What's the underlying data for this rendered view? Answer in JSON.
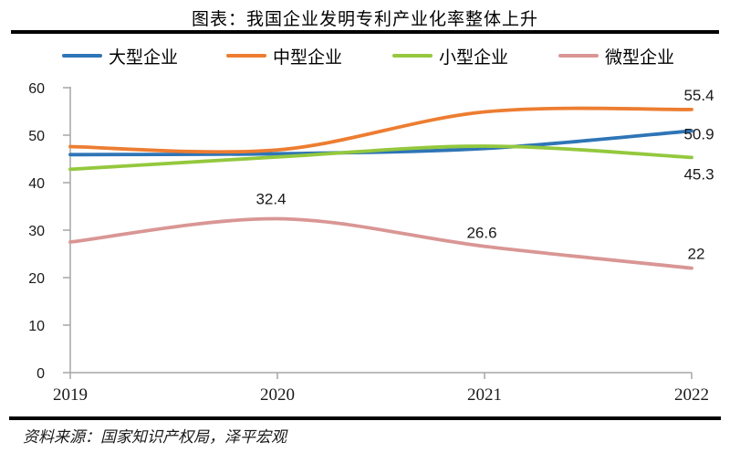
{
  "title": "图表：我国企业发明专利产业化率整体上升",
  "source": "资料来源：国家知识产权局，泽平宏观",
  "legend": [
    {
      "label": "大型企业",
      "color": "#2E75B6"
    },
    {
      "label": "中型企业",
      "color": "#ED7D31"
    },
    {
      "label": "小型企业",
      "color": "#94C83D"
    },
    {
      "label": "微型企业",
      "color": "#D99694"
    }
  ],
  "chart_data": {
    "type": "line",
    "smooth": true,
    "x": [
      2019,
      2020,
      2021,
      2022
    ],
    "x_tick_labels": [
      "2019",
      "2020",
      "2021",
      "2022"
    ],
    "y_ticks": [
      "0",
      "10",
      "20",
      "30",
      "40",
      "50",
      "60"
    ],
    "ylim": [
      0,
      60
    ],
    "grid": false,
    "legend_position": "top",
    "axis_color": "#A6A6A6",
    "series": [
      {
        "name": "大型企业",
        "color": "#2E75B6",
        "values": [
          45.9,
          46.1,
          47.2,
          50.9
        ]
      },
      {
        "name": "中型企业",
        "color": "#ED7D31",
        "values": [
          47.6,
          46.9,
          54.9,
          55.4
        ]
      },
      {
        "name": "小型企业",
        "color": "#94C83D",
        "values": [
          42.8,
          45.4,
          47.7,
          45.3
        ]
      },
      {
        "name": "微型企业",
        "color": "#D99694",
        "values": [
          27.5,
          32.4,
          26.6,
          22
        ]
      }
    ],
    "point_labels": [
      {
        "text": "55.4",
        "series": 1,
        "index": 3
      },
      {
        "text": "50.9",
        "series": 0,
        "index": 3
      },
      {
        "text": "45.3",
        "series": 2,
        "index": 3
      },
      {
        "text": "22",
        "series": 3,
        "index": 3
      },
      {
        "text": "32.4",
        "series": 3,
        "index": 1
      },
      {
        "text": "26.6",
        "series": 3,
        "index": 2
      }
    ]
  }
}
